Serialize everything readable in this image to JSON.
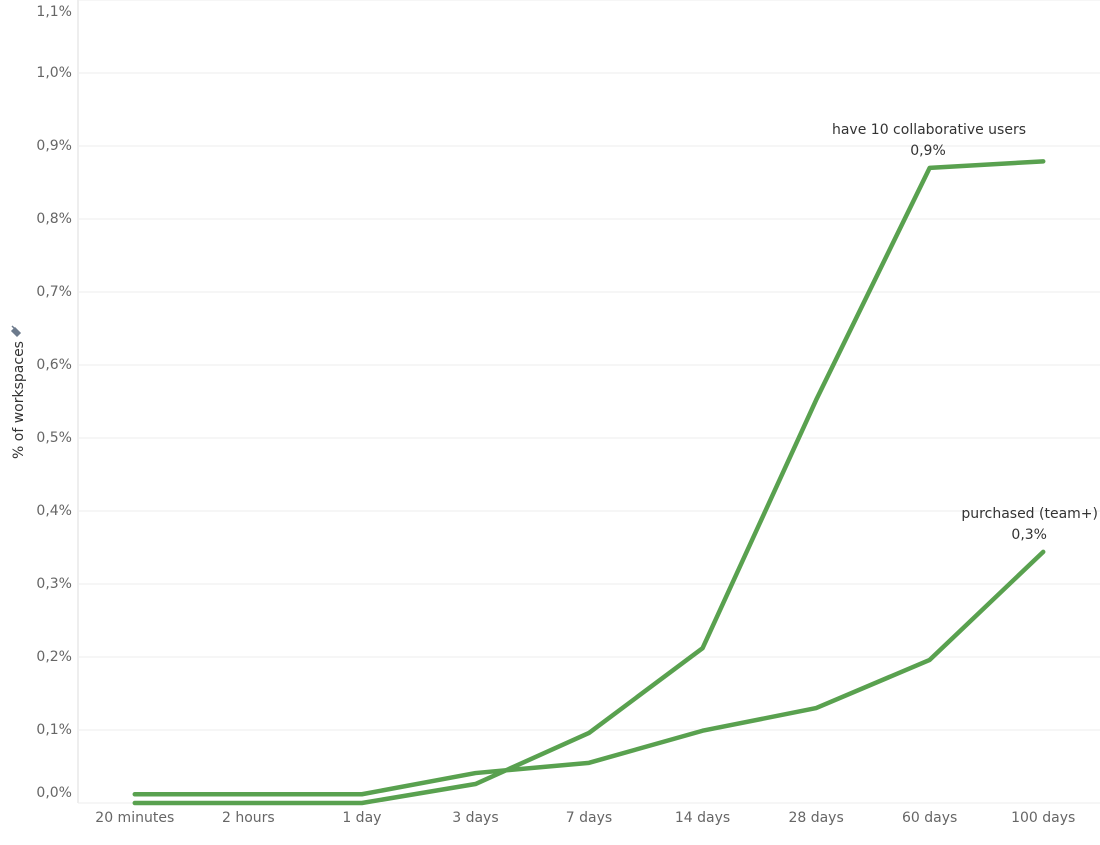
{
  "chart_data": {
    "type": "line",
    "y_label": "% of workspaces",
    "categories": [
      "20 minutes",
      "2 hours",
      "1 day",
      "3 days",
      "7 days",
      "14 days",
      "28 days",
      "60 days",
      "100 days"
    ],
    "series": [
      {
        "name": "have 10 collaborative users",
        "color": "#59a14f",
        "values": [
          0,
          0,
          0,
          0.026,
          0.096,
          0.212,
          0.552,
          0.87,
          0.879
        ],
        "value_labels": [
          null,
          null,
          null,
          null,
          null,
          null,
          null,
          null,
          "0,9%"
        ]
      },
      {
        "name": "purchased (team+)",
        "color": "#59a14f",
        "values": [
          0.012,
          0.012,
          0.012,
          0.041,
          0.055,
          0.099,
          0.13,
          0.196,
          0.344
        ],
        "value_labels": [
          null,
          null,
          null,
          null,
          null,
          null,
          null,
          null,
          "0,3%"
        ]
      }
    ],
    "ylim": [
      0,
      1.1
    ],
    "yticks": [
      {
        "value": 0,
        "label": "0,0%"
      },
      {
        "value": 0.1,
        "label": "0,1%"
      },
      {
        "value": 0.2,
        "label": "0,2%"
      },
      {
        "value": 0.3,
        "label": "0,3%"
      },
      {
        "value": 0.4,
        "label": "0,4%"
      },
      {
        "value": 0.5,
        "label": "0,5%"
      },
      {
        "value": 0.6,
        "label": "0,6%"
      },
      {
        "value": 0.7,
        "label": "0,7%"
      },
      {
        "value": 0.8,
        "label": "0,8%"
      },
      {
        "value": 0.9,
        "label": "0,9%"
      },
      {
        "value": 1.0,
        "label": "1,0%"
      },
      {
        "value": 1.1,
        "label": "1,1%"
      }
    ],
    "grid": true
  }
}
